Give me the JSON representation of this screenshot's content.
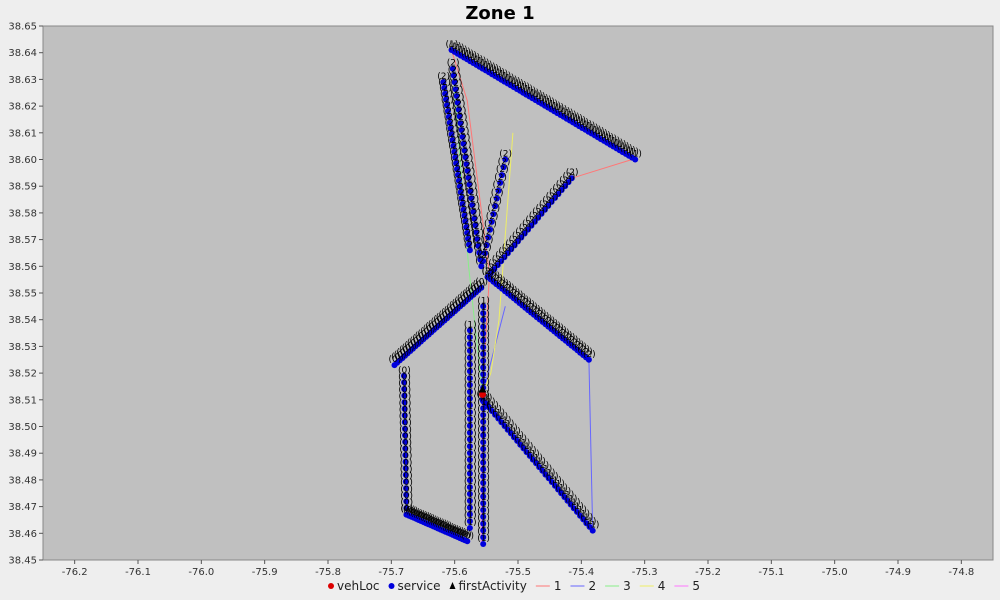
{
  "chart_data": {
    "type": "scatter",
    "title": "Zone 1",
    "xlabel": "",
    "ylabel": "",
    "xlim": [
      -76.25,
      -74.75
    ],
    "ylim": [
      38.45,
      38.65
    ],
    "xticks": [
      -76.2,
      -76.1,
      -76.0,
      -75.9,
      -75.8,
      -75.7,
      -75.6,
      -75.5,
      -75.4,
      -75.3,
      -75.2,
      -75.1,
      -75.0,
      -74.9,
      -74.8
    ],
    "xtick_labels": [
      "-76.2",
      "-76.1",
      "-76.0",
      "-75.9",
      "-75.8",
      "-75.7",
      "-75.6",
      "-75.5",
      "-75.4",
      "-75.3",
      "-75.2",
      "-75.1",
      "-75.0",
      "-74.9",
      "-74.8"
    ],
    "yticks": [
      38.45,
      38.46,
      38.47,
      38.48,
      38.49,
      38.5,
      38.51,
      38.52,
      38.53,
      38.54,
      38.55,
      38.56,
      38.57,
      38.58,
      38.59,
      38.6,
      38.61,
      38.62,
      38.63,
      38.64,
      38.65
    ],
    "ytick_labels": [
      "38.45",
      "38.46",
      "38.47",
      "38.48",
      "38.49",
      "38.50",
      "38.51",
      "38.52",
      "38.53",
      "38.54",
      "38.55",
      "38.56",
      "38.57",
      "38.58",
      "38.59",
      "38.60",
      "38.61",
      "38.62",
      "38.63",
      "38.64",
      "38.65"
    ],
    "grid": false,
    "legend_position": "bottom",
    "legend": [
      {
        "label": "vehLoc",
        "kind": "dot",
        "color": "#dd0000"
      },
      {
        "label": "service",
        "kind": "dot",
        "color": "#0000dd"
      },
      {
        "label": "firstActivity",
        "kind": "triangle",
        "color": "#000000"
      },
      {
        "label": "1",
        "kind": "line",
        "color": "#ff7777"
      },
      {
        "label": "2",
        "kind": "line",
        "color": "#6666ff"
      },
      {
        "label": "3",
        "kind": "line",
        "color": "#88ee88"
      },
      {
        "label": "4",
        "kind": "line",
        "color": "#eeee66"
      },
      {
        "label": "5",
        "kind": "line",
        "color": "#ff77ff"
      }
    ],
    "vehLoc": [
      [
        -75.556,
        38.512
      ]
    ],
    "first_activity": [
      [
        -75.556,
        38.512
      ]
    ],
    "service_segments": [
      {
        "name": "1",
        "label": "(1)",
        "from": [
          -75.605,
          38.641
        ],
        "to": [
          -75.315,
          38.6
        ],
        "n": 60
      },
      {
        "name": "2",
        "label": "(2)",
        "from": [
          -75.415,
          38.593
        ],
        "to": [
          -75.548,
          38.556
        ],
        "n": 26
      },
      {
        "name": "2",
        "label": "(2)",
        "from": [
          -75.618,
          38.629
        ],
        "to": [
          -75.576,
          38.566
        ],
        "n": 30
      },
      {
        "name": "2",
        "label": "(2)",
        "from": [
          -75.603,
          38.634
        ],
        "to": [
          -75.558,
          38.56
        ],
        "n": 30
      },
      {
        "name": "2",
        "label": "(2)",
        "from": [
          -75.52,
          38.6
        ],
        "to": [
          -75.555,
          38.562
        ],
        "n": 14
      },
      {
        "name": "2",
        "label": "(2)",
        "from": [
          -75.548,
          38.556
        ],
        "to": [
          -75.388,
          38.525
        ],
        "n": 36
      },
      {
        "name": "0",
        "label": "(0)",
        "from": [
          -75.558,
          38.552
        ],
        "to": [
          -75.695,
          38.523
        ],
        "n": 34
      },
      {
        "name": "0",
        "label": "(0)",
        "from": [
          -75.68,
          38.519
        ],
        "to": [
          -75.676,
          38.467
        ],
        "n": 22
      },
      {
        "name": "0",
        "label": "(0)",
        "from": [
          -75.676,
          38.467
        ],
        "to": [
          -75.58,
          38.457
        ],
        "n": 26
      },
      {
        "name": "1",
        "label": "(1)",
        "from": [
          -75.576,
          38.536
        ],
        "to": [
          -75.576,
          38.462
        ],
        "n": 30
      },
      {
        "name": "1",
        "label": "(1)",
        "from": [
          -75.555,
          38.545
        ],
        "to": [
          -75.555,
          38.456
        ],
        "n": 36
      },
      {
        "name": "1",
        "label": "(1)",
        "from": [
          -75.556,
          38.51
        ],
        "to": [
          -75.382,
          38.461
        ],
        "n": 36
      }
    ],
    "routes": [
      {
        "name": "1",
        "color": "#ff7777",
        "points": [
          [
            -75.605,
            38.641
          ],
          [
            -75.58,
            38.622
          ],
          [
            -75.545,
            38.557
          ],
          [
            -75.556,
            38.512
          ]
        ]
      },
      {
        "name": "1",
        "color": "#ff7777",
        "points": [
          [
            -75.415,
            38.593
          ],
          [
            -75.32,
            38.6
          ]
        ]
      },
      {
        "name": "2",
        "color": "#6666ff",
        "points": [
          [
            -75.556,
            38.512
          ],
          [
            -75.52,
            38.545
          ]
        ]
      },
      {
        "name": "2",
        "color": "#6666ff",
        "points": [
          [
            -75.388,
            38.525
          ],
          [
            -75.382,
            38.461
          ]
        ]
      },
      {
        "name": "3",
        "color": "#88ee88",
        "points": [
          [
            -75.603,
            38.634
          ],
          [
            -75.578,
            38.56
          ],
          [
            -75.556,
            38.512
          ]
        ]
      },
      {
        "name": "4",
        "color": "#eeee66",
        "points": [
          [
            -75.508,
            38.61
          ],
          [
            -75.53,
            38.54
          ],
          [
            -75.543,
            38.52
          ],
          [
            -75.556,
            38.512
          ]
        ]
      },
      {
        "name": "5",
        "color": "#ff77ff",
        "points": [
          [
            -75.556,
            38.512
          ],
          [
            -75.558,
            38.456
          ]
        ]
      }
    ]
  }
}
